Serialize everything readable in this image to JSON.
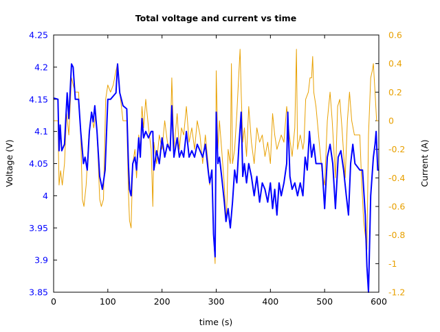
{
  "chart_data": {
    "type": "line",
    "title": "Total voltage and current vs time",
    "xlabel": "time (s)",
    "ylabel": "Voltage (V)",
    "y2label": "Current (A)",
    "xlim": [
      0,
      600
    ],
    "ylim": [
      3.85,
      4.25
    ],
    "y2lim": [
      -1.2,
      0.6
    ],
    "grid": false,
    "x_ticks": [
      "0",
      "100",
      "200",
      "300",
      "400",
      "500",
      "600"
    ],
    "y_ticks": [
      "3.85",
      "3.9",
      "3.95",
      "4",
      "4.05",
      "4.1",
      "4.15",
      "4.2",
      "4.25"
    ],
    "y2_ticks": [
      "-1.2",
      "-1",
      "-0.8",
      "-0.6",
      "-0.4",
      "-0.2",
      "0",
      "0.2",
      "0.4",
      "0.6"
    ],
    "colors": {
      "voltage": "#0000ff",
      "current": "#e8a000",
      "left_axis": "#0000ff",
      "right_axis": "#e8a000"
    },
    "series": [
      {
        "axis": "left",
        "x": [
          0,
          8,
          10,
          12,
          15,
          20,
          25,
          28,
          33,
          36,
          40,
          46,
          50,
          55,
          58,
          62,
          66,
          70,
          73,
          76,
          80,
          85,
          90,
          95,
          100,
          105,
          110,
          115,
          118,
          122,
          128,
          135,
          138,
          140,
          143,
          146,
          150,
          153,
          157,
          160,
          163,
          166,
          170,
          175,
          180,
          183,
          185,
          190,
          195,
          200,
          205,
          210,
          215,
          218,
          222,
          228,
          232,
          236,
          240,
          245,
          250,
          255,
          260,
          265,
          270,
          275,
          280,
          285,
          288,
          292,
          295,
          298,
          300,
          303,
          306,
          310,
          315,
          318,
          322,
          326,
          330,
          334,
          338,
          342,
          346,
          349,
          352,
          356,
          360,
          365,
          370,
          375,
          380,
          385,
          390,
          395,
          400,
          404,
          408,
          412,
          416,
          420,
          425,
          430,
          432,
          436,
          440,
          445,
          450,
          455,
          460,
          464,
          468,
          472,
          476,
          480,
          484,
          490,
          495,
          500,
          505,
          510,
          515,
          520,
          525,
          530,
          535,
          540,
          544,
          548,
          552,
          556,
          565,
          570,
          575,
          578,
          581,
          585,
          590,
          593,
          595,
          598,
          600
        ],
        "y": [
          4.152,
          4.15,
          4.07,
          4.11,
          4.07,
          4.08,
          4.16,
          4.12,
          4.205,
          4.2,
          4.15,
          4.15,
          4.1,
          4.05,
          4.06,
          4.04,
          4.1,
          4.13,
          4.115,
          4.14,
          4.1,
          4.03,
          4.01,
          4.04,
          4.15,
          4.15,
          4.155,
          4.16,
          4.205,
          4.16,
          4.14,
          4.135,
          4.05,
          4.01,
          4.0,
          4.05,
          4.06,
          4.04,
          4.09,
          4.06,
          4.12,
          4.09,
          4.1,
          4.09,
          4.1,
          4.1,
          4.04,
          4.07,
          4.05,
          4.09,
          4.06,
          4.08,
          4.07,
          4.14,
          4.06,
          4.09,
          4.06,
          4.07,
          4.06,
          4.1,
          4.06,
          4.07,
          4.06,
          4.08,
          4.07,
          4.06,
          4.08,
          4.04,
          4.02,
          4.04,
          3.94,
          3.905,
          4.13,
          4.05,
          4.06,
          4.03,
          3.99,
          3.96,
          3.98,
          3.95,
          3.99,
          4.04,
          4.02,
          4.08,
          4.13,
          4.03,
          4.05,
          4.02,
          4.05,
          4.03,
          4.0,
          4.03,
          3.99,
          4.02,
          4.01,
          3.99,
          4.02,
          3.98,
          4.01,
          3.97,
          4.02,
          4.0,
          4.02,
          4.05,
          4.13,
          4.03,
          4.01,
          4.02,
          4.0,
          4.02,
          4.0,
          4.06,
          4.04,
          4.1,
          4.06,
          4.08,
          4.05,
          4.05,
          4.05,
          3.98,
          4.06,
          4.08,
          4.05,
          3.98,
          4.06,
          4.07,
          4.04,
          4.0,
          3.97,
          4.05,
          4.08,
          4.05,
          4.04,
          4.04,
          3.97,
          3.89,
          3.85,
          4.0,
          4.06,
          4.08,
          4.1,
          4.04,
          4.04
        ]
      },
      {
        "axis": "right",
        "x": [
          0,
          8,
          10,
          13,
          16,
          20,
          24,
          28,
          33,
          36,
          40,
          46,
          50,
          53,
          56,
          60,
          65,
          70,
          74,
          78,
          82,
          85,
          88,
          92,
          96,
          100,
          105,
          110,
          115,
          118,
          122,
          128,
          135,
          138,
          140,
          143,
          146,
          150,
          153,
          157,
          160,
          163,
          166,
          170,
          175,
          180,
          183,
          185,
          190,
          195,
          200,
          205,
          210,
          215,
          218,
          222,
          228,
          232,
          236,
          240,
          245,
          250,
          255,
          260,
          265,
          270,
          275,
          280,
          285,
          288,
          292,
          295,
          298,
          300,
          303,
          306,
          310,
          315,
          318,
          320,
          322,
          326,
          328,
          330,
          334,
          338,
          342,
          344,
          346,
          349,
          352,
          356,
          360,
          365,
          370,
          375,
          380,
          385,
          390,
          395,
          400,
          404,
          408,
          412,
          416,
          420,
          425,
          430,
          435,
          440,
          445,
          448,
          450,
          455,
          460,
          462,
          465,
          470,
          473,
          476,
          478,
          480,
          484,
          490,
          495,
          500,
          505,
          510,
          514,
          520,
          524,
          528,
          532,
          538,
          542,
          546,
          550,
          555,
          560,
          565,
          568,
          572,
          575,
          578,
          581,
          585,
          588,
          590,
          593,
          596,
          600
        ],
        "y": [
          0,
          0,
          -0.45,
          -0.35,
          -0.45,
          -0.3,
          0.05,
          -0.1,
          0.3,
          0.25,
          0.2,
          0.2,
          -0.1,
          -0.55,
          -0.6,
          -0.45,
          -0.1,
          0.05,
          -0.05,
          0.05,
          -0.25,
          -0.55,
          -0.6,
          -0.55,
          0.15,
          0.25,
          0.2,
          0.25,
          0.35,
          0.4,
          0.2,
          0,
          0,
          -0.5,
          -0.7,
          -0.75,
          -0.3,
          -0.2,
          -0.4,
          -0.1,
          -0.2,
          0.1,
          -0.05,
          0.15,
          -0.05,
          -0.2,
          -0.6,
          -0.15,
          -0.3,
          -0.1,
          -0.2,
          0,
          -0.15,
          -0.2,
          0.3,
          -0.2,
          0.05,
          -0.2,
          -0.05,
          -0.1,
          0.1,
          -0.15,
          -0.05,
          -0.2,
          0,
          -0.1,
          -0.3,
          -0.1,
          -0.3,
          -0.45,
          -0.35,
          -0.8,
          -1.0,
          0.35,
          -0.2,
          0,
          -0.2,
          -0.45,
          -0.7,
          -0.55,
          -0.2,
          -0.3,
          0.4,
          -0.3,
          -0.2,
          0.05,
          0.35,
          0.5,
          0.2,
          -0.15,
          -0.05,
          -0.25,
          0.1,
          -0.15,
          -0.3,
          -0.05,
          -0.15,
          -0.1,
          -0.25,
          -0.15,
          -0.3,
          0.05,
          -0.1,
          -0.2,
          -0.15,
          -0.1,
          -0.15,
          0.1,
          -0.1,
          -0.25,
          -0.05,
          0.5,
          -0.2,
          -0.1,
          -0.2,
          -0.15,
          0.15,
          0.2,
          0.3,
          0.3,
          0.45,
          0.2,
          0.1,
          -0.15,
          -0.35,
          -0.45,
          0,
          0.2,
          0,
          -0.4,
          0.1,
          0.15,
          -0.05,
          -0.4,
          0,
          0.2,
          0,
          -0.1,
          -0.1,
          -0.1,
          -0.4,
          -0.7,
          -0.8,
          -0.9,
          -0.1,
          0.3,
          0.35,
          0.4,
          0.2,
          0,
          0
        ]
      }
    ]
  }
}
